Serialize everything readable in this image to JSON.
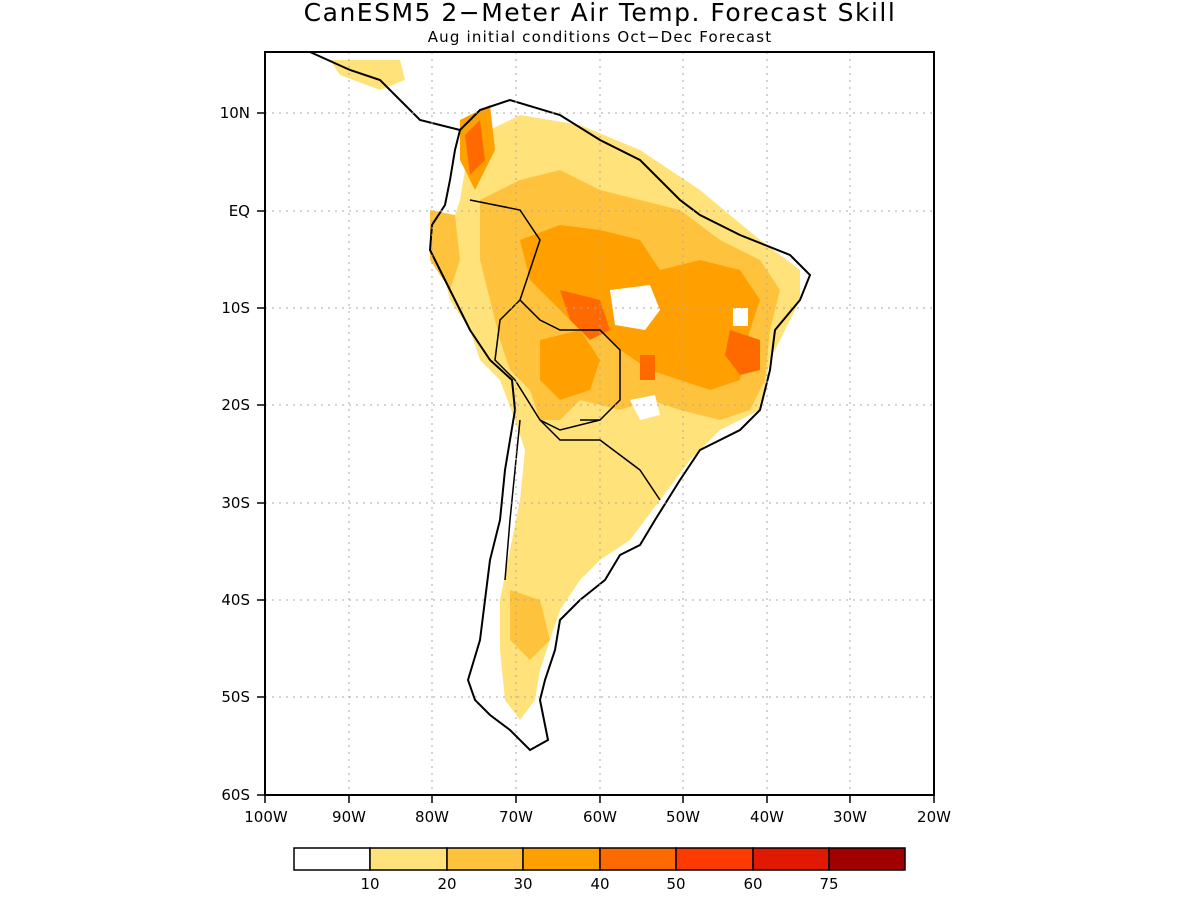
{
  "header": {
    "title": "CanESM5 2−Meter Air Temp. Forecast Skill",
    "subtitle": "Aug initial conditions  Oct−Dec Forecast"
  },
  "map": {
    "lon_range": [
      -100,
      -20
    ],
    "lat_range": [
      -60,
      15
    ],
    "x_ticks": [
      "100W",
      "90W",
      "80W",
      "70W",
      "60W",
      "50W",
      "40W",
      "30W",
      "20W"
    ],
    "y_ticks": [
      "10N",
      "EQ",
      "10S",
      "20S",
      "30S",
      "40S",
      "50S",
      "60S"
    ],
    "gridlines": "dotted"
  },
  "colorbar": {
    "labels": [
      "10",
      "20",
      "30",
      "40",
      "50",
      "60",
      "75"
    ],
    "colors": [
      "#ffffff",
      "#ffe27a",
      "#ffc23d",
      "#ffa000",
      "#ff6a00",
      "#ff3a00",
      "#e01a00",
      "#a00000"
    ]
  }
}
